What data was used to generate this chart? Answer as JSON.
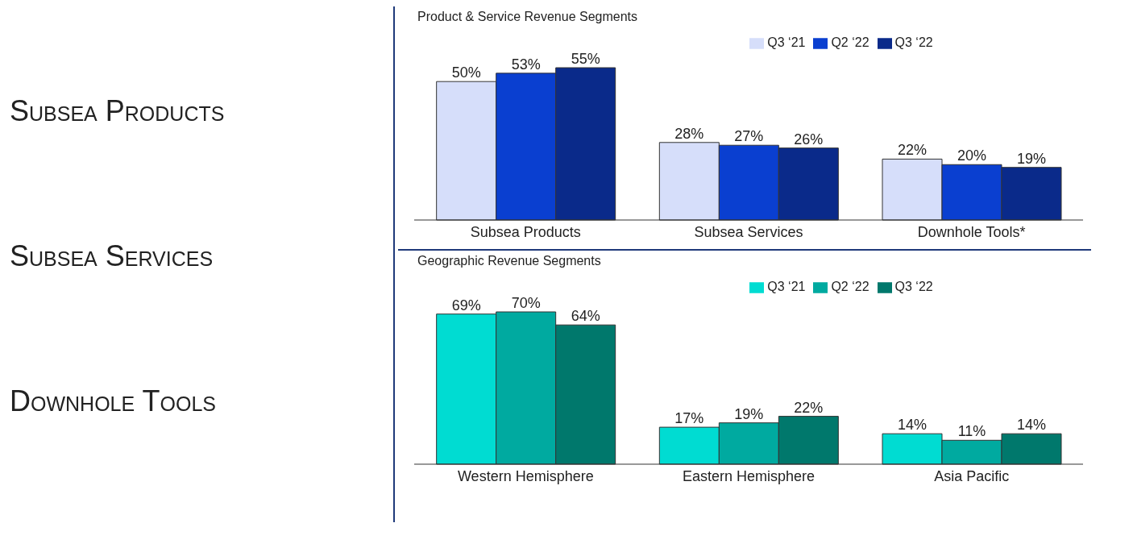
{
  "chart_data": [
    {
      "type": "other",
      "annotations": [
        "Subsea Products",
        "Subsea Services",
        "Downhole Tools"
      ]
    },
    {
      "type": "bar",
      "title": "Product & Service Revenue Segments",
      "categories": [
        "Subsea Products",
        "Subsea Services",
        "Downhole Tools*"
      ],
      "legend": "top",
      "series": [
        {
          "name": "Q3 ‘21",
          "color": "#d6defa",
          "values": [
            50,
            28,
            22
          ],
          "value_labels": [
            "50%",
            "28%",
            "22%"
          ]
        },
        {
          "name": "Q2 ‘22",
          "color": "#0a3fd0",
          "values": [
            53,
            27,
            20
          ],
          "value_labels": [
            "53%",
            "27%",
            "20%"
          ]
        },
        {
          "name": "Q3 ‘22",
          "color": "#0a2a8a",
          "values": [
            55,
            26,
            19
          ],
          "value_labels": [
            "55%",
            "26%",
            "19%"
          ]
        }
      ]
    },
    {
      "type": "bar",
      "title": "Geographic Revenue Segments",
      "categories": [
        "Western Hemisphere",
        "Eastern Hemisphere",
        "Asia Pacific"
      ],
      "legend": "top",
      "series": [
        {
          "name": "Q3 ‘21",
          "color": "#00dcd2",
          "values": [
            69,
            17,
            14
          ],
          "value_labels": [
            "69%",
            "17%",
            "14%"
          ]
        },
        {
          "name": "Q2 ‘22",
          "color": "#00aaa0",
          "values": [
            70,
            19,
            11
          ],
          "value_labels": [
            "70%",
            "19%",
            "11%"
          ]
        },
        {
          "name": "Q3 ‘22",
          "color": "#00786c",
          "values": [
            64,
            22,
            14
          ],
          "value_labels": [
            "64%",
            "22%",
            "14%"
          ]
        }
      ]
    }
  ]
}
